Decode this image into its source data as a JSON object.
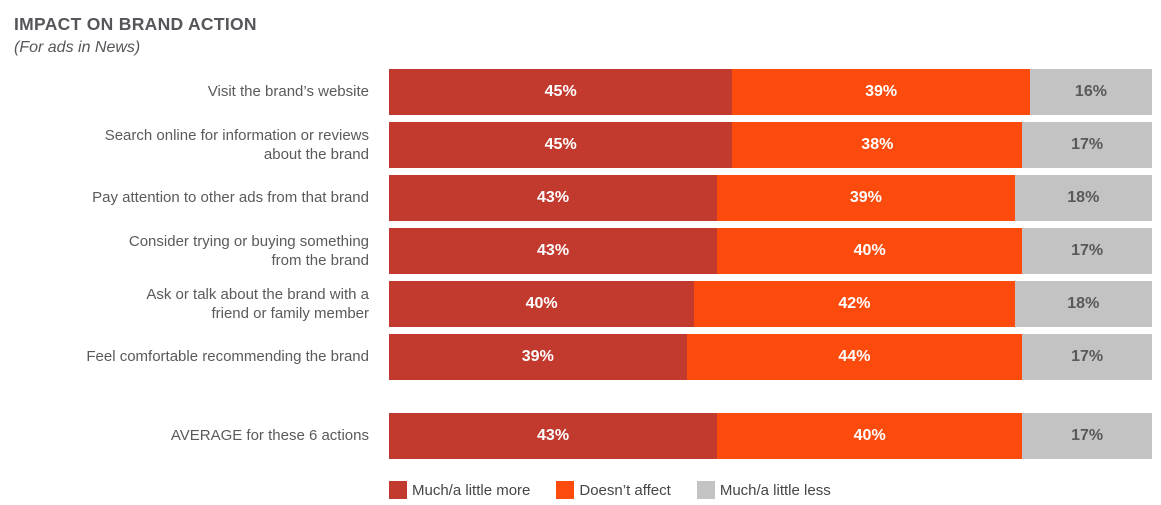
{
  "header": {
    "title": "IMPACT ON BRAND ACTION",
    "subtitle": "(For ads in News)"
  },
  "colors": {
    "much_more": "#c23a2e",
    "doesnt_affect": "#fc4b0d",
    "much_less": "#c4c3c3",
    "title_text": "#54565a",
    "label_text": "#595a5c",
    "value_on_gray_text": "#58595b",
    "value_on_color_text": "#ffffff"
  },
  "legend": {
    "items": [
      {
        "label": "Much/a little more",
        "color": "#c23a2e"
      },
      {
        "label": "Doesn’t affect",
        "color": "#fc4b0d"
      },
      {
        "label": "Much/a little less",
        "color": "#c4c3c3"
      }
    ]
  },
  "chart_data": {
    "type": "bar",
    "variant": "horizontal-stacked",
    "title": "IMPACT ON BRAND ACTION",
    "subtitle": "(For ads in News)",
    "unit": "%",
    "xlim": [
      0,
      100
    ],
    "grid": false,
    "legend_position": "bottom",
    "value_labels": "inside-center",
    "categories": [
      "Visit the brand’s website",
      "Search online for information or reviews about the brand",
      "Pay attention to other ads from that brand",
      "Consider trying or buying something from the brand",
      "Ask or talk about the brand with a friend or family member",
      "Feel comfortable recommending the brand",
      "AVERAGE for these 6 actions"
    ],
    "series": [
      {
        "name": "Much/a little more",
        "color": "#c23a2e",
        "values": [
          45,
          45,
          43,
          43,
          40,
          39,
          43
        ]
      },
      {
        "name": "Doesn’t affect",
        "color": "#fc4b0d",
        "values": [
          39,
          38,
          39,
          40,
          42,
          44,
          40
        ]
      },
      {
        "name": "Much/a little less",
        "color": "#c4c3c3",
        "values": [
          16,
          17,
          18,
          17,
          18,
          17,
          17
        ]
      }
    ]
  },
  "rows": [
    {
      "label": "Visit the brand’s website",
      "values": [
        45,
        39,
        16
      ],
      "is_average": false
    },
    {
      "label": "Search online for information or reviews\nabout the brand",
      "values": [
        45,
        38,
        17
      ],
      "is_average": false
    },
    {
      "label": "Pay attention to other ads from that brand",
      "values": [
        43,
        39,
        18
      ],
      "is_average": false
    },
    {
      "label": "Consider trying or buying something\nfrom the brand",
      "values": [
        43,
        40,
        17
      ],
      "is_average": false
    },
    {
      "label": "Ask or talk about the brand with a\nfriend or family member",
      "values": [
        40,
        42,
        18
      ],
      "is_average": false
    },
    {
      "label": "Feel comfortable recommending the brand",
      "values": [
        39,
        44,
        17
      ],
      "is_average": false
    },
    {
      "label": "AVERAGE for these 6 actions",
      "values": [
        43,
        40,
        17
      ],
      "is_average": true
    }
  ]
}
